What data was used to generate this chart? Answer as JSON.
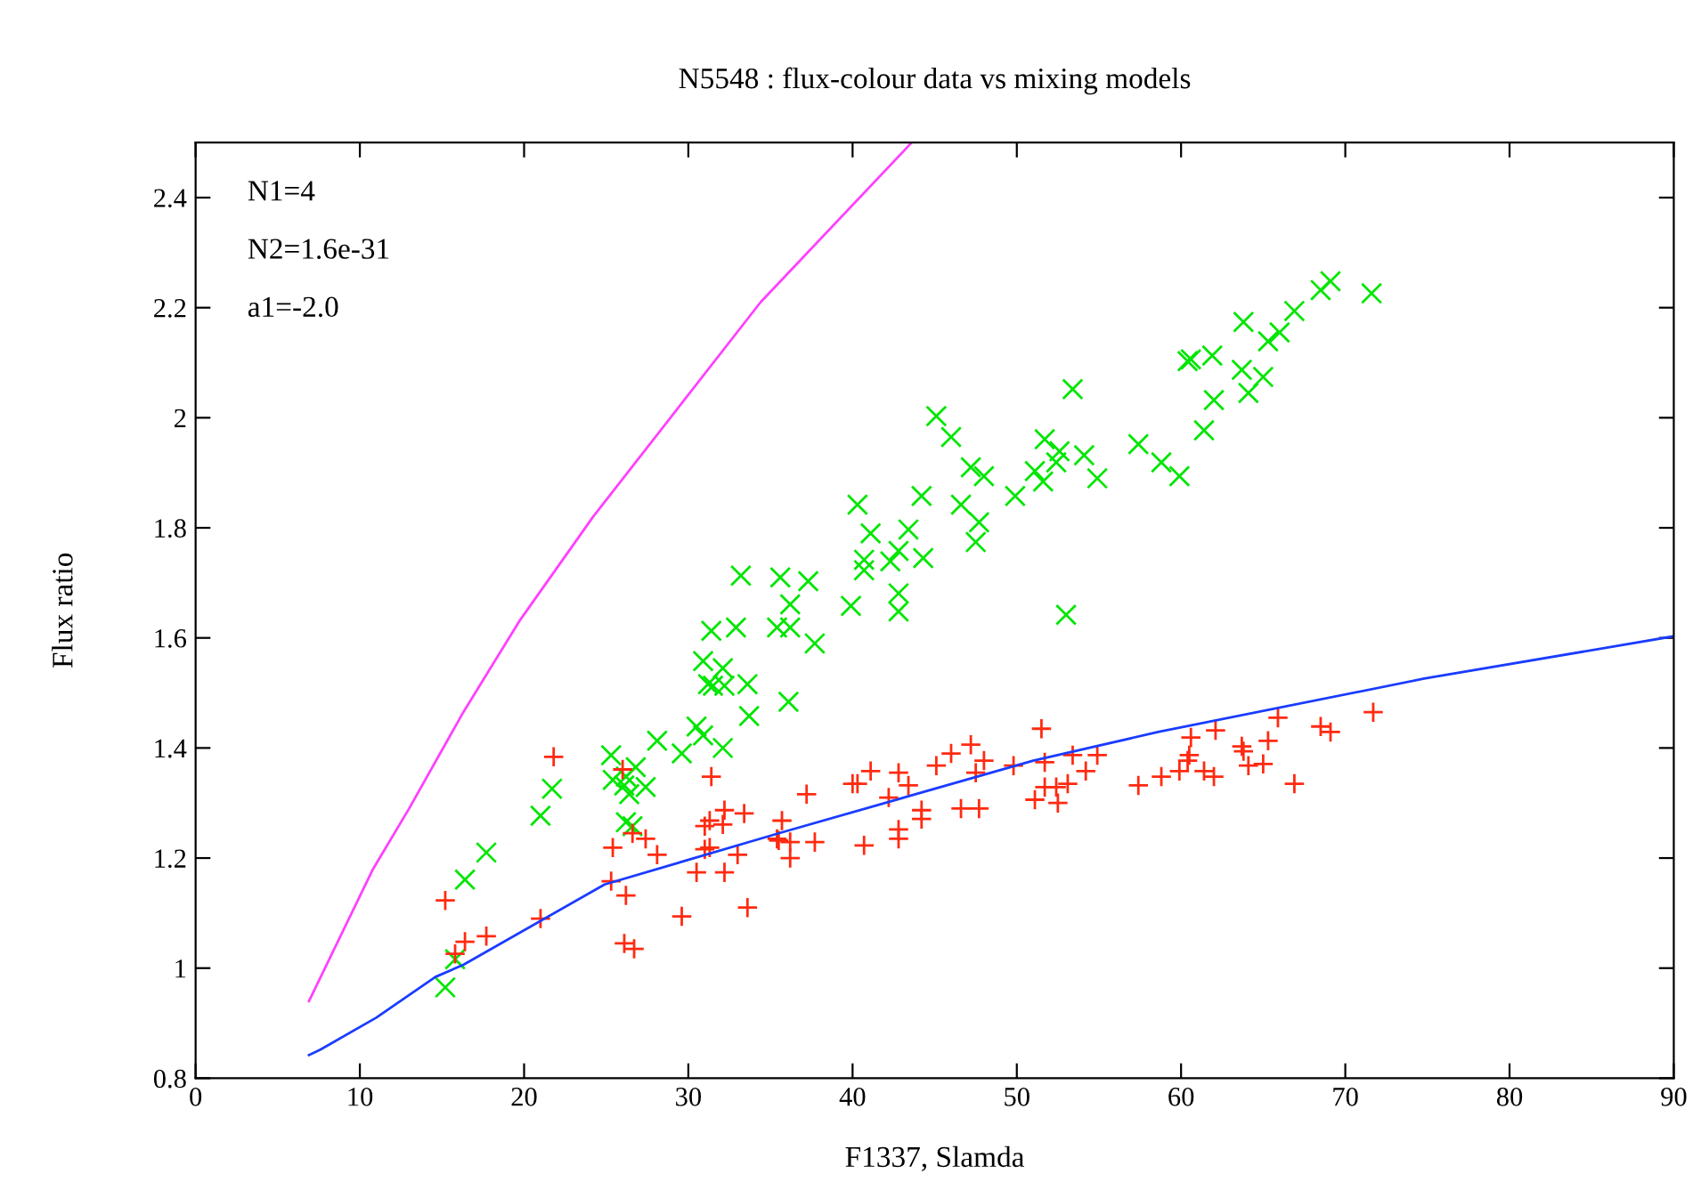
{
  "chart_data": {
    "type": "scatter",
    "title": "N5548 : flux-colour data vs mixing models",
    "xlabel": "F1337, Slamda",
    "ylabel": "Flux ratio",
    "annotations": [
      "N1=4",
      "N2=1.6e-31",
      "a1=-2.0"
    ],
    "xlim": [
      0,
      90
    ],
    "xticks": [
      0,
      10,
      20,
      30,
      40,
      50,
      60,
      70,
      80,
      90
    ],
    "ylim": [
      0.8,
      2.5
    ],
    "yticks": [
      {
        "value": 0.8,
        "label": "0.8"
      },
      {
        "value": 1.0,
        "label": "1"
      },
      {
        "value": 1.2,
        "label": "1.2"
      },
      {
        "value": 1.4,
        "label": "1.4"
      },
      {
        "value": 1.6,
        "label": "1.6"
      },
      {
        "value": 1.8,
        "label": "1.8"
      },
      {
        "value": 2.0,
        "label": "2"
      },
      {
        "value": 2.2,
        "label": "2.2"
      },
      {
        "value": 2.4,
        "label": "2.4"
      }
    ],
    "grid": false,
    "legend": false,
    "series": [
      {
        "marker": "x",
        "color": "#00e600",
        "x": [
          15.2,
          15.8,
          16.4,
          17.7,
          21.0,
          21.7,
          25.3,
          25.4,
          26.1,
          26.2,
          26.4,
          26.8,
          27.4,
          26.2,
          26.6,
          28.1,
          29.6,
          30.5,
          30.9,
          30.9,
          31.2,
          31.5,
          31.4,
          32.1,
          32.2,
          32.1,
          33.2,
          32.9,
          33.6,
          33.7,
          35.6,
          35.4,
          36.2,
          36.2,
          36.1,
          37.3,
          37.7,
          40.3,
          41.1,
          43.4,
          44.2,
          45.1,
          46.0,
          40.7,
          40.7,
          39.9,
          42.8,
          42.3,
          44.3,
          42.8,
          42.8,
          46.6,
          47.7,
          47.5,
          47.2,
          48.0,
          49.9,
          51.1,
          51.6,
          51.7,
          52.4,
          52.6,
          53.4,
          53.0,
          54.1,
          54.9,
          57.4,
          58.8,
          59.9,
          60.4,
          60.6,
          61.9,
          61.4,
          62.0,
          63.7,
          64.1,
          65.0,
          63.8,
          65.3,
          66.0,
          66.9,
          68.5,
          69.1,
          71.6
        ],
        "values": [
          0.965,
          1.016,
          1.161,
          1.21,
          1.277,
          1.326,
          1.387,
          1.342,
          1.332,
          1.348,
          1.316,
          1.365,
          1.329,
          1.265,
          1.258,
          1.413,
          1.39,
          1.439,
          1.423,
          1.558,
          1.516,
          1.513,
          1.613,
          1.545,
          1.513,
          1.4,
          1.713,
          1.619,
          1.516,
          1.458,
          1.71,
          1.619,
          1.661,
          1.619,
          1.484,
          1.703,
          1.59,
          1.842,
          1.79,
          1.797,
          1.858,
          2.003,
          1.965,
          1.742,
          1.723,
          1.658,
          1.758,
          1.739,
          1.745,
          1.681,
          1.648,
          1.842,
          1.81,
          1.774,
          1.91,
          1.894,
          1.858,
          1.903,
          1.884,
          1.961,
          1.919,
          1.939,
          2.052,
          1.642,
          1.932,
          1.89,
          1.952,
          1.919,
          1.894,
          2.103,
          2.106,
          2.113,
          1.977,
          2.032,
          2.087,
          2.045,
          2.074,
          2.174,
          2.139,
          2.155,
          2.194,
          2.232,
          2.248,
          2.226
        ]
      },
      {
        "marker": "cross",
        "color": "#ff2a10",
        "x": [
          15.2,
          16.4,
          15.8,
          17.7,
          21.0,
          21.8,
          25.4,
          25.3,
          26.0,
          26.2,
          26.1,
          26.7,
          26.6,
          27.4,
          28.1,
          29.6,
          31.0,
          31.0,
          31.3,
          32.2,
          32.1,
          31.4,
          30.5,
          31.3,
          32.2,
          33.0,
          33.4,
          33.6,
          35.5,
          35.7,
          35.4,
          36.2,
          36.2,
          37.7,
          37.2,
          40.0,
          40.3,
          41.1,
          40.7,
          42.2,
          42.8,
          43.4,
          42.8,
          42.8,
          44.2,
          44.2,
          45.1,
          46.0,
          47.2,
          47.5,
          48.0,
          46.6,
          47.7,
          49.8,
          51.5,
          51.7,
          51.1,
          51.7,
          52.4,
          52.5,
          53.1,
          53.4,
          54.2,
          54.9,
          57.4,
          58.8,
          59.9,
          60.6,
          60.5,
          60.4,
          61.4,
          62.0,
          62.1,
          63.7,
          63.8,
          64.1,
          65.0,
          65.3,
          65.9,
          66.9,
          68.5,
          69.1,
          71.7
        ],
        "values": [
          1.123,
          1.048,
          1.026,
          1.058,
          1.09,
          1.384,
          1.219,
          1.158,
          1.361,
          1.132,
          1.045,
          1.035,
          1.245,
          1.235,
          1.206,
          1.094,
          1.258,
          1.216,
          1.268,
          1.287,
          1.261,
          1.348,
          1.174,
          1.219,
          1.174,
          1.206,
          1.281,
          1.11,
          1.232,
          1.268,
          1.235,
          1.229,
          1.2,
          1.229,
          1.316,
          1.335,
          1.335,
          1.358,
          1.223,
          1.31,
          1.355,
          1.332,
          1.252,
          1.235,
          1.287,
          1.271,
          1.368,
          1.39,
          1.406,
          1.355,
          1.377,
          1.29,
          1.29,
          1.368,
          1.435,
          1.374,
          1.306,
          1.329,
          1.329,
          1.3,
          1.335,
          1.387,
          1.358,
          1.387,
          1.332,
          1.348,
          1.358,
          1.419,
          1.387,
          1.377,
          1.358,
          1.348,
          1.432,
          1.403,
          1.394,
          1.368,
          1.371,
          1.413,
          1.455,
          1.335,
          1.439,
          1.429,
          1.465
        ]
      },
      {
        "type": "line",
        "marker": "none",
        "color": "#ff40ff",
        "x": [
          6.9,
          10.8,
          13.0,
          16.3,
          19.7,
          24.2,
          34.4,
          43.6
        ],
        "values": [
          0.94,
          1.18,
          1.29,
          1.465,
          1.63,
          1.82,
          2.21,
          2.5
        ]
      },
      {
        "type": "line",
        "marker": "none",
        "color": "#1a3cff",
        "x": [
          6.9,
          7.6,
          11.0,
          14.6,
          16.3,
          24.9,
          35.5,
          51.0,
          58.6,
          74.8,
          90
        ],
        "values": [
          0.842,
          0.852,
          0.91,
          0.984,
          1.006,
          1.152,
          1.245,
          1.377,
          1.429,
          1.526,
          1.603
        ]
      }
    ]
  }
}
